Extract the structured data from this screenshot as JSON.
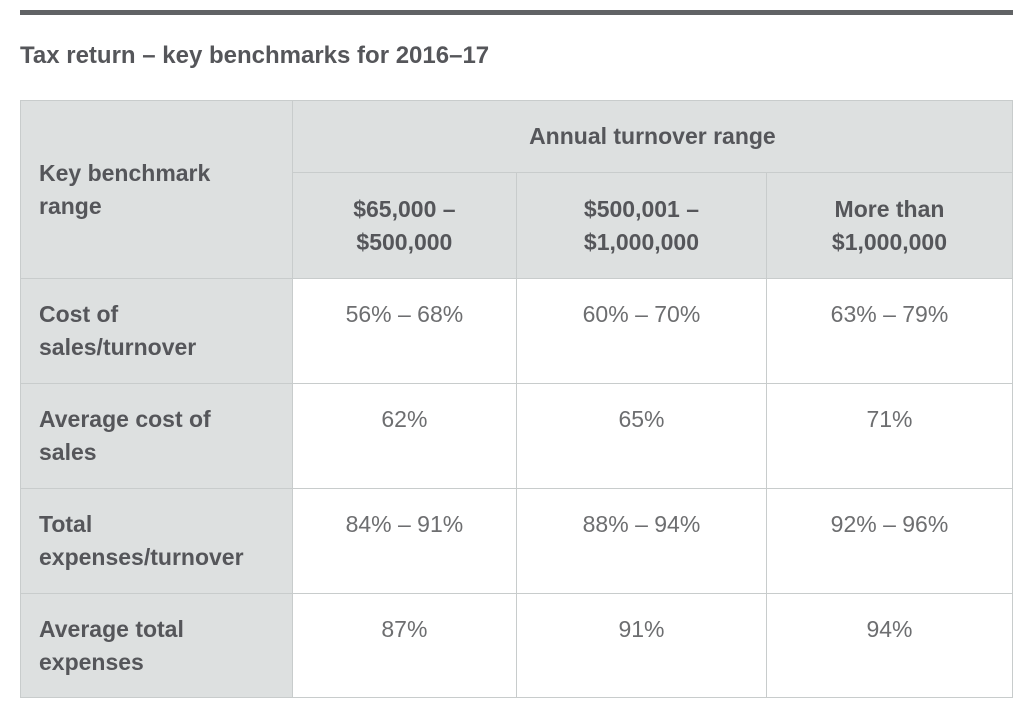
{
  "page": {
    "title": "Tax return – key benchmarks for 2016–17"
  },
  "colors": {
    "accent_bar": "#616365",
    "header_cell_background": "#dde0e0",
    "table_border": "#c8cccc",
    "heading_text": "#55565a",
    "value_text": "#6d6e70"
  },
  "table": {
    "row_header_title": "Key benchmark range",
    "column_group_title": "Annual turnover range",
    "columns": [
      "$65,000 – $500,000",
      "$500,001 – $1,000,000",
      "More than $1,000,000"
    ],
    "rows": [
      {
        "label": "Cost of sales/turnover",
        "values": [
          "56% – 68%",
          "60% – 70%",
          "63% – 79%"
        ]
      },
      {
        "label": "Average cost of sales",
        "values": [
          "62%",
          "65%",
          "71%"
        ]
      },
      {
        "label": "Total expenses/turnover",
        "values": [
          "84% – 91%",
          "88% – 94%",
          "92% – 96%"
        ]
      },
      {
        "label": "Average total expenses",
        "values": [
          "87%",
          "91%",
          "94%"
        ]
      }
    ]
  }
}
